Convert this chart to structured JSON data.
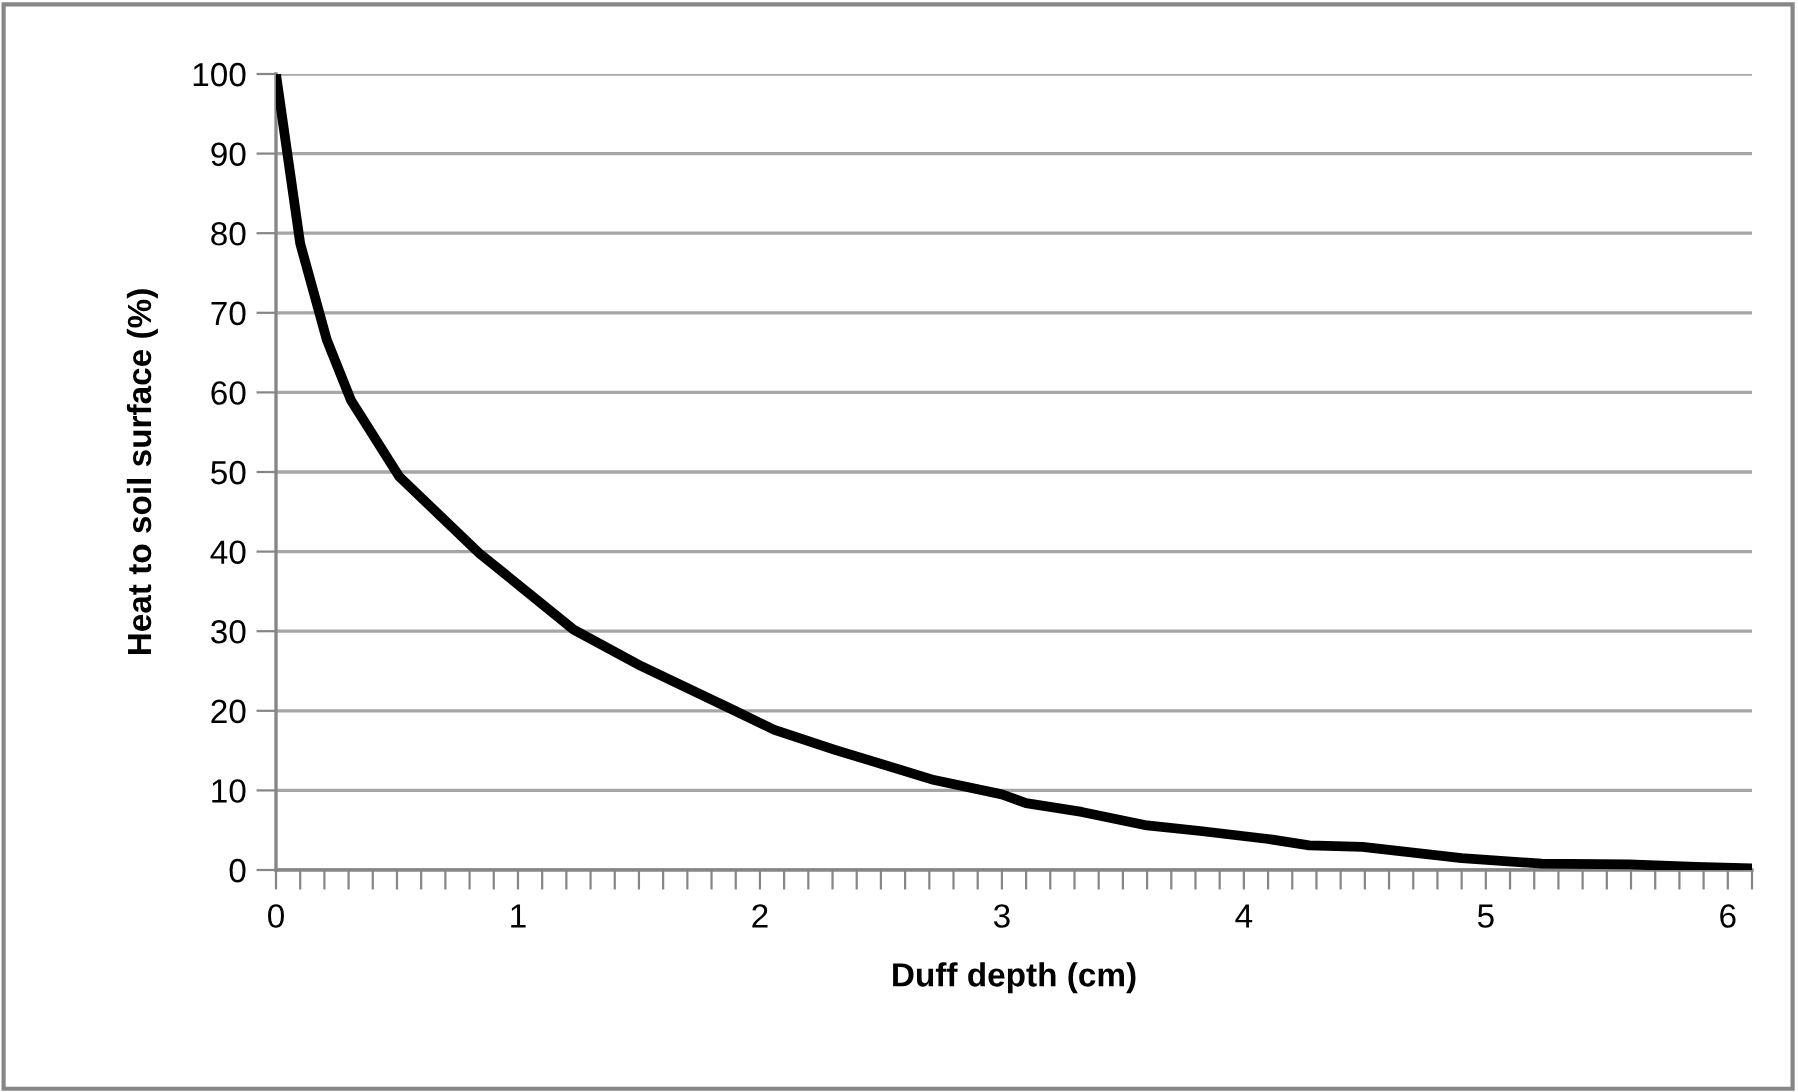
{
  "chart_data": {
    "type": "line",
    "xlabel": "Duff depth (cm)",
    "ylabel": "Heat to soil surface (%)",
    "x": [
      0,
      0.1,
      0.21,
      0.31,
      0.51,
      0.84,
      1.23,
      1.51,
      1.89,
      2.06,
      2.31,
      2.72,
      3.0,
      3.1,
      3.33,
      3.6,
      3.82,
      4.1,
      4.27,
      4.49,
      4.9,
      5.23,
      5.59,
      5.87,
      6.1
    ],
    "series": [
      {
        "color": "#000000",
        "values": [
          100,
          78.7,
          66.6,
          59,
          49.4,
          39.8,
          30.2,
          25.6,
          20.1,
          17.6,
          15.1,
          11.3,
          9.5,
          8.4,
          7.3,
          5.6,
          4.9,
          3.9,
          3.1,
          2.9,
          1.5,
          0.8,
          0.7,
          0.4,
          0.2
        ]
      }
    ],
    "xlim": [
      0,
      6.1
    ],
    "ylim": [
      0,
      100
    ],
    "xticks": [
      0,
      {
        "value": 0.1,
        "label": null
      },
      {
        "value": 0.2,
        "label": null
      },
      {
        "value": 0.3,
        "label": null
      },
      {
        "value": 0.4,
        "label": null
      },
      {
        "value": 0.5,
        "label": null
      },
      {
        "value": 0.6,
        "label": null
      },
      {
        "value": 0.7,
        "label": null
      },
      {
        "value": 0.8,
        "label": null
      },
      {
        "value": 0.9,
        "label": null
      },
      1,
      {
        "value": 1.1,
        "label": null
      },
      {
        "value": 1.2,
        "label": null
      },
      {
        "value": 1.3,
        "label": null
      },
      {
        "value": 1.4,
        "label": null
      },
      {
        "value": 1.5,
        "label": null
      },
      {
        "value": 1.6,
        "label": null
      },
      {
        "value": 1.7,
        "label": null
      },
      {
        "value": 1.8,
        "label": null
      },
      {
        "value": 1.9,
        "label": null
      },
      2,
      {
        "value": 2.1,
        "label": null
      },
      {
        "value": 2.2,
        "label": null
      },
      {
        "value": 2.3,
        "label": null
      },
      {
        "value": 2.4,
        "label": null
      },
      {
        "value": 2.5,
        "label": null
      },
      {
        "value": 2.6,
        "label": null
      },
      {
        "value": 2.7,
        "label": null
      },
      {
        "value": 2.8,
        "label": null
      },
      {
        "value": 2.9,
        "label": null
      },
      3,
      {
        "value": 3.1,
        "label": null
      },
      {
        "value": 3.2,
        "label": null
      },
      {
        "value": 3.3,
        "label": null
      },
      {
        "value": 3.4,
        "label": null
      },
      {
        "value": 3.5,
        "label": null
      },
      {
        "value": 3.6,
        "label": null
      },
      {
        "value": 3.7,
        "label": null
      },
      {
        "value": 3.8,
        "label": null
      },
      {
        "value": 3.9,
        "label": null
      },
      4,
      {
        "value": 4.1,
        "label": null
      },
      {
        "value": 4.2,
        "label": null
      },
      {
        "value": 4.3,
        "label": null
      },
      {
        "value": 4.4,
        "label": null
      },
      {
        "value": 4.5,
        "label": null
      },
      {
        "value": 4.6,
        "label": null
      },
      {
        "value": 4.7,
        "label": null
      },
      {
        "value": 4.8,
        "label": null
      },
      {
        "value": 4.9,
        "label": null
      },
      5,
      {
        "value": 5.1,
        "label": null
      },
      {
        "value": 5.2,
        "label": null
      },
      {
        "value": 5.3,
        "label": null
      },
      {
        "value": 5.4,
        "label": null
      },
      {
        "value": 5.5,
        "label": null
      },
      {
        "value": 5.6,
        "label": null
      },
      {
        "value": 5.7,
        "label": null
      },
      {
        "value": 5.8,
        "label": null
      },
      {
        "value": 5.9,
        "label": null
      },
      6,
      {
        "value": 6.1,
        "label": null
      }
    ],
    "yticks": [
      0,
      10,
      20,
      30,
      40,
      50,
      60,
      70,
      80,
      90,
      100
    ],
    "grid": "y",
    "marker": "none",
    "line_style": "solid"
  }
}
